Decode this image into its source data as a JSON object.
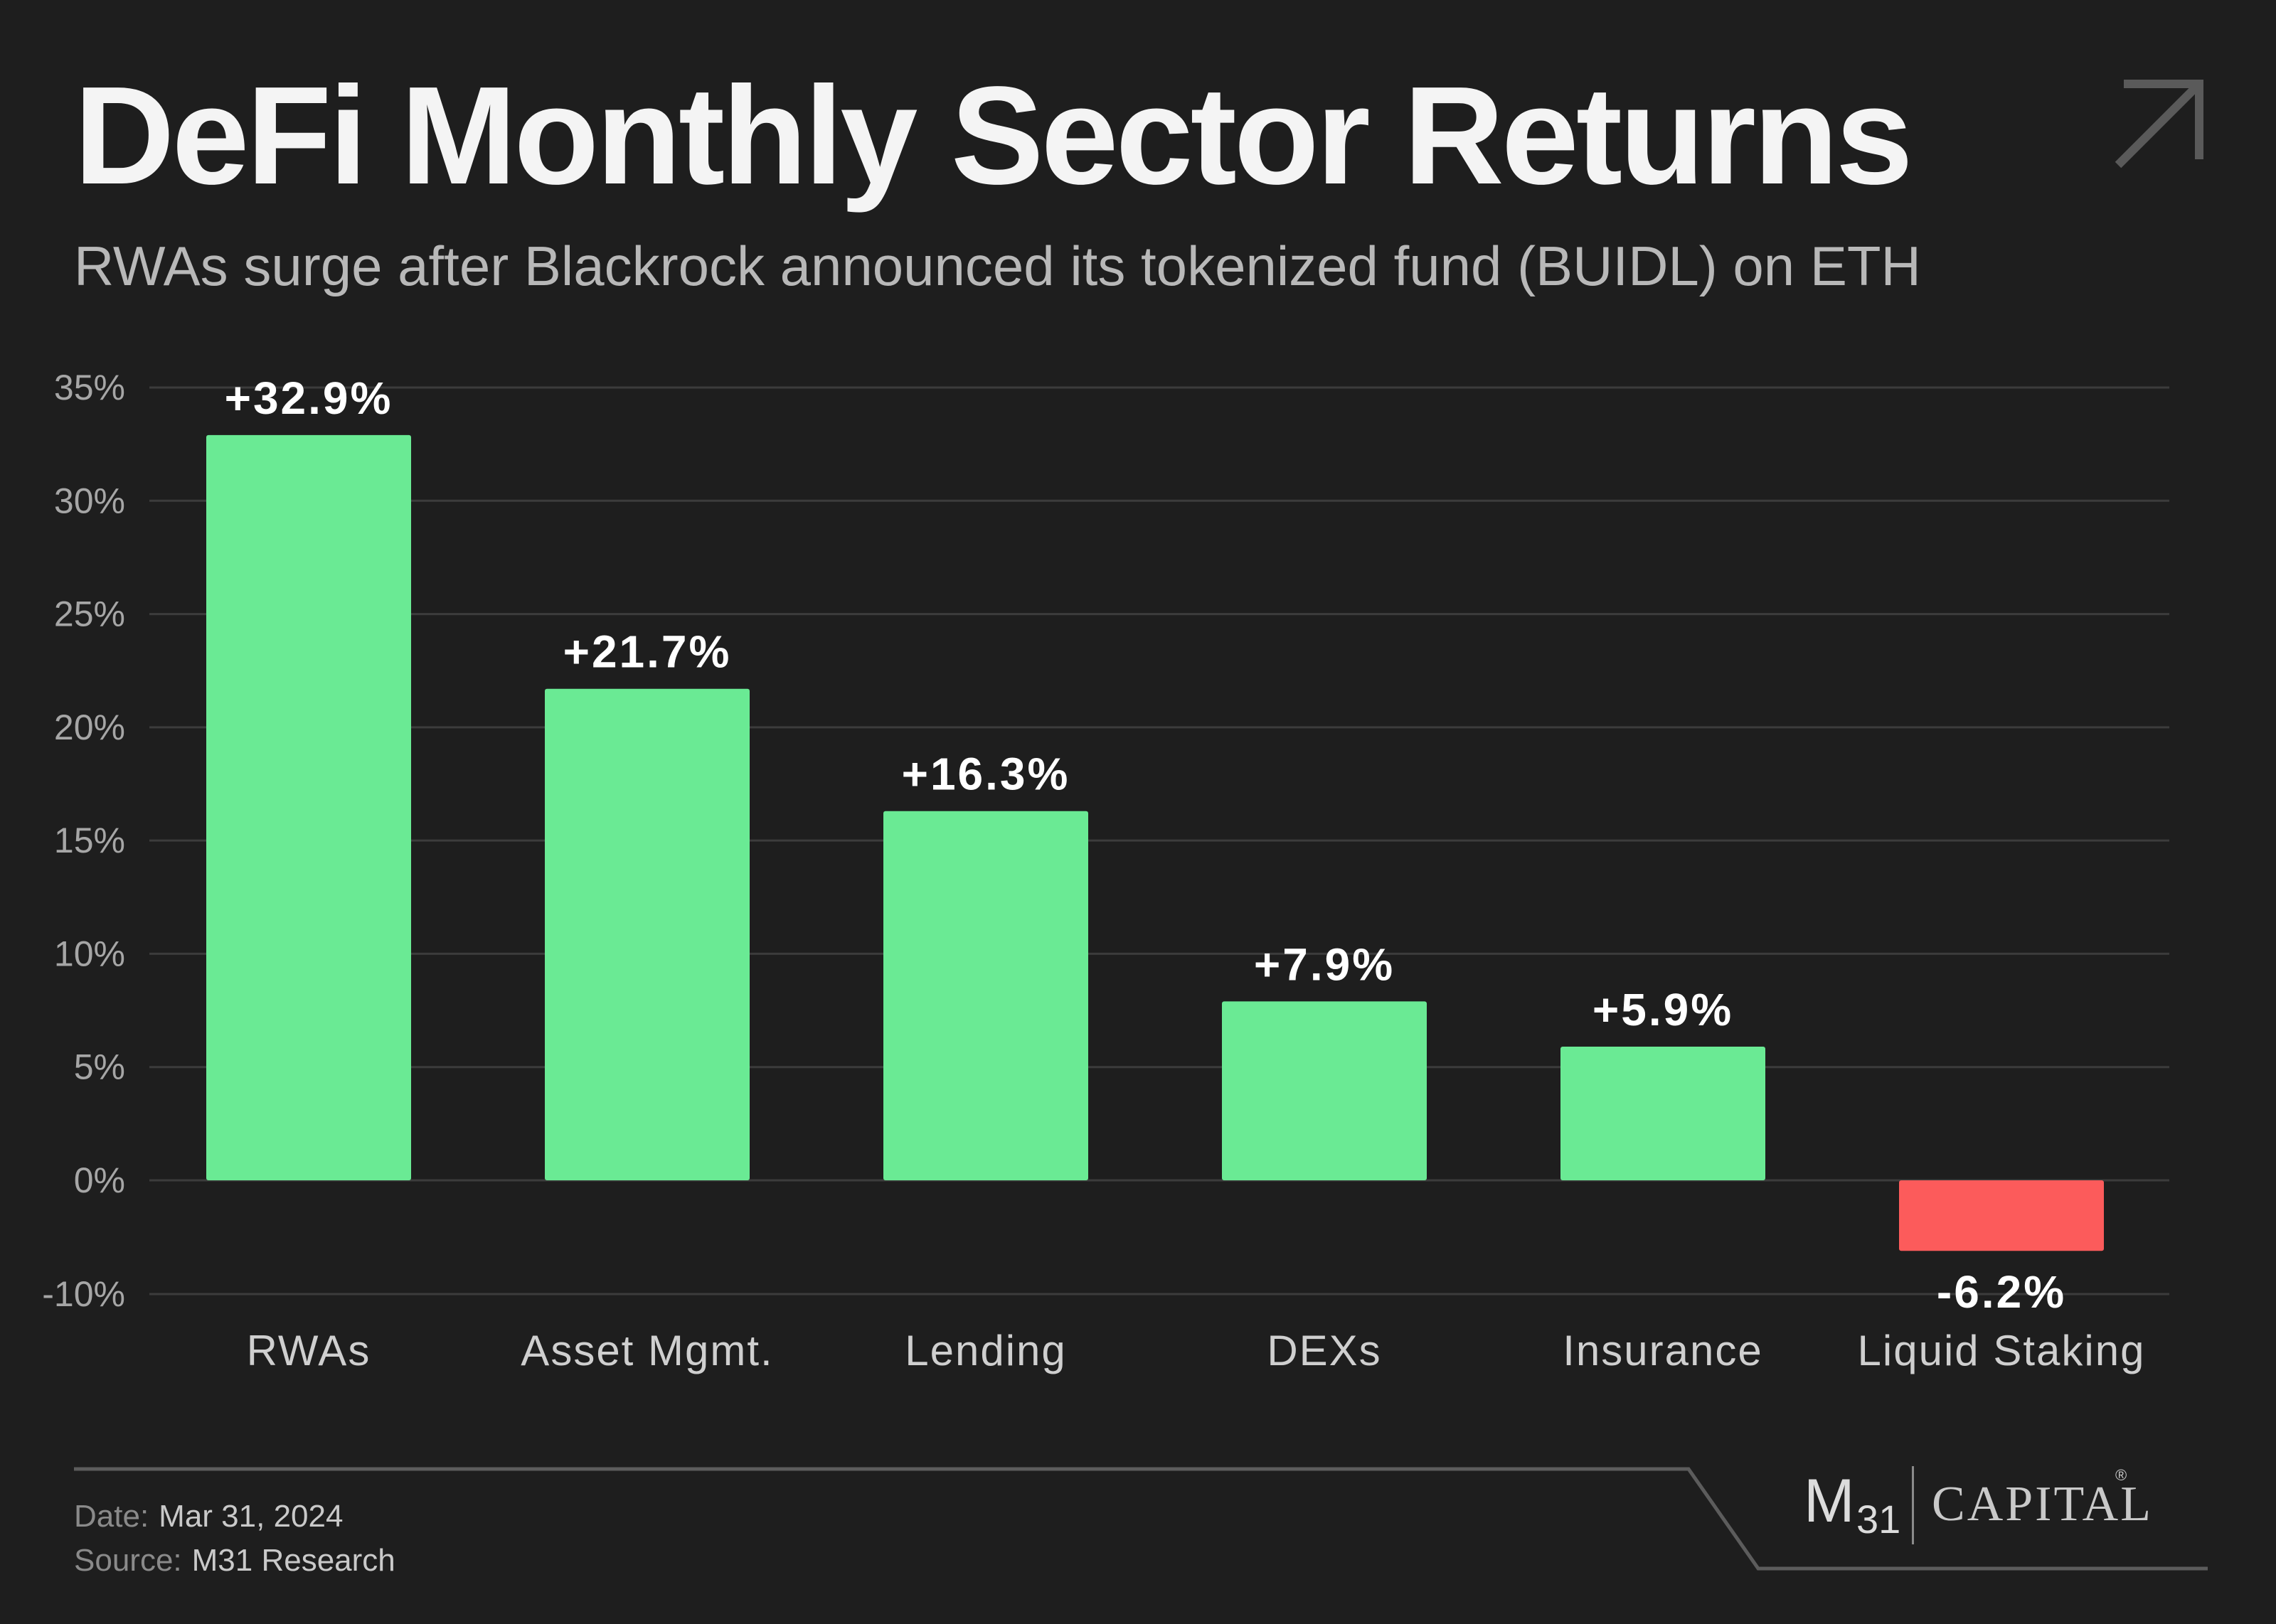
{
  "header": {
    "title": "DeFi Monthly Sector Returns",
    "subtitle": "RWAs surge after Blackrock announced its tokenized fund (BUIDL) on ETH"
  },
  "footer": {
    "date_label": "Date:",
    "date_value": "Mar 31, 2024",
    "source_label": "Source:",
    "source_value": "M31 Research"
  },
  "brand": {
    "logo_m": "M",
    "logo_sub": "31",
    "logo_name": "CAPITAL",
    "logo_mark": "®"
  },
  "colors": {
    "background": "#1e1e1e",
    "positive": "#6aea94",
    "negative": "#fc5b5b",
    "gridline": "#3c3c3c",
    "tick_text": "#a6a6a6",
    "category_text": "#cfcfcf"
  },
  "icons": [
    "arrow-up-right-icon"
  ],
  "chart_data": {
    "type": "bar",
    "title": "DeFi Monthly Sector Returns",
    "subtitle": "RWAs surge after Blackrock announced its tokenized fund (BUIDL) on ETH",
    "categories": [
      "RWAs",
      "Asset Mgmt.",
      "Lending",
      "DEXs",
      "Insurance",
      "Liquid Staking"
    ],
    "values": [
      32.9,
      21.7,
      16.3,
      7.9,
      5.9,
      -6.2
    ],
    "data_labels": [
      "+32.9%",
      "+21.7%",
      "+16.3%",
      "+7.9%",
      "+5.9%",
      "-6.2%"
    ],
    "yticks": [
      35,
      30,
      25,
      20,
      15,
      10,
      5,
      0,
      -10
    ],
    "ytick_labels": [
      "35%",
      "30%",
      "25%",
      "20%",
      "15%",
      "10%",
      "5%",
      "0%",
      "-10%"
    ],
    "ylim": [
      -10,
      35
    ],
    "xlabel": "",
    "ylabel": "",
    "grid": true,
    "legend": "none"
  }
}
